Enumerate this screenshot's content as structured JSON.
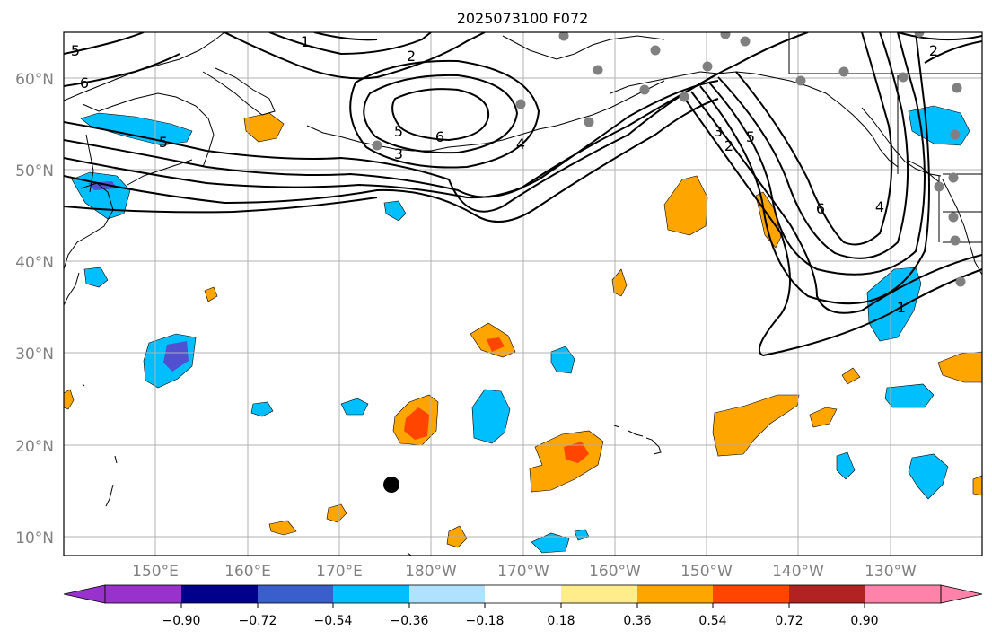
{
  "title": "2025073100 F072",
  "lat_labels": [
    "60°N",
    "50°N",
    "40°N",
    "30°N",
    "20°N",
    "10°N"
  ],
  "lon_labels": [
    "150°E",
    "160°E",
    "170°E",
    "180°W",
    "170°W",
    "160°W",
    "150°W",
    "140°W",
    "130°W"
  ],
  "colorbar": {
    "ticks": [
      "−0.90",
      "−0.72",
      "−0.54",
      "−0.36",
      "−0.18",
      "0.18",
      "0.36",
      "0.54",
      "0.72",
      "0.90"
    ],
    "colors": [
      "#9932cc",
      "#00008b",
      "#3a5fcd",
      "#00bfff",
      "#b0e2ff",
      "#ffffff",
      "#ffec8b",
      "#ffa500",
      "#ff4500",
      "#b22222",
      "#ff82ab"
    ]
  },
  "contour_labels": [
    "5",
    "6",
    "5",
    "1",
    "2",
    "3",
    "5",
    "6",
    "4",
    "3",
    "2",
    "5",
    "6",
    "4",
    "1",
    "2"
  ],
  "colors": {
    "blue_fill": "#00bfff",
    "orange_fill": "#ffa500",
    "red_fill": "#ff4500",
    "purple_fill": "#5050d0",
    "station_marker": "#808080",
    "storm_marker": "#000000",
    "gridline": "#b0b0b0"
  },
  "markers": {
    "storm": "black-circle",
    "stations": "gray-circle"
  }
}
